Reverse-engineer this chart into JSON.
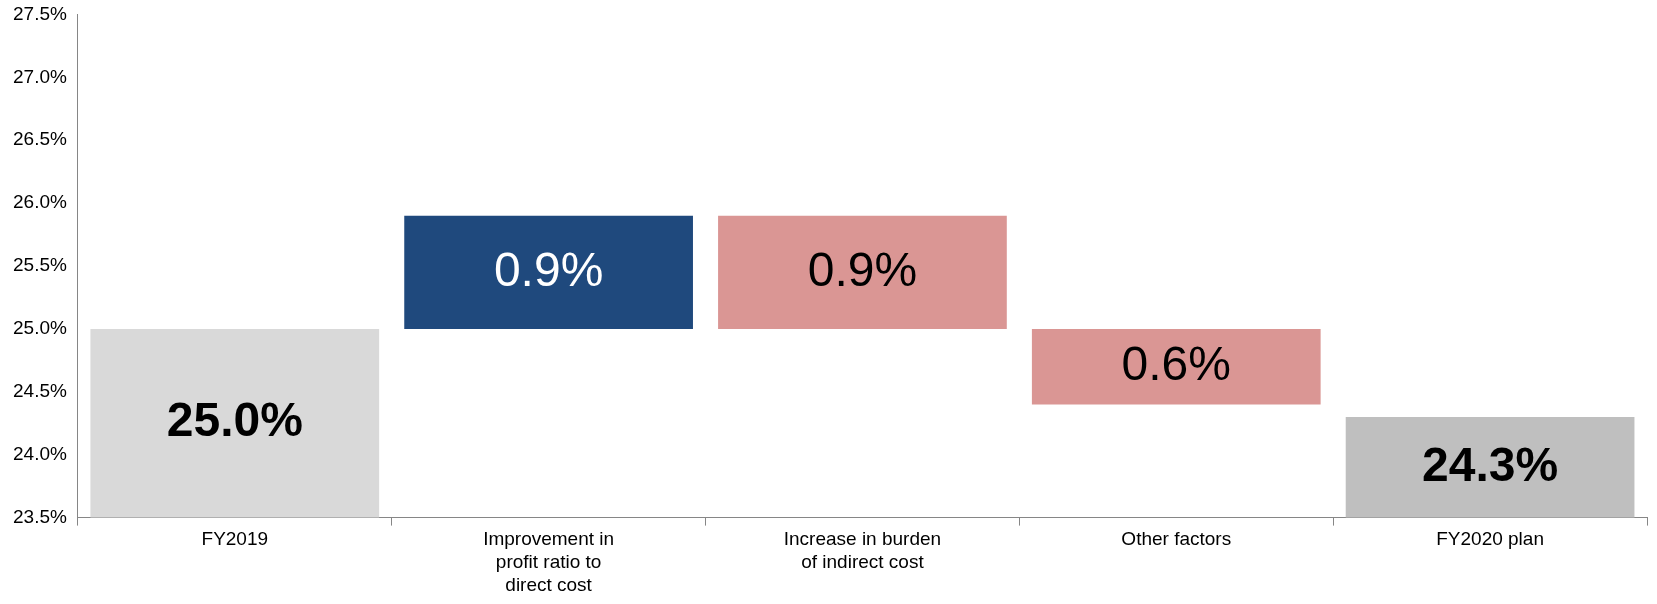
{
  "chart_data": {
    "type": "bar",
    "categories": [
      "FY2019",
      "Improvement in profit ratio to direct cost",
      "Increase in burden of indirect cost",
      "Other factors",
      "FY2020 plan"
    ],
    "values": [
      25.0,
      0.9,
      -0.9,
      -0.6,
      24.3
    ],
    "base": [
      null,
      25.0,
      25.9,
      25.0,
      null
    ],
    "colors": [
      "#d9d9d9",
      "#1f497d",
      "#da9694",
      "#da9694",
      "#bfbfbf"
    ],
    "value_labels": [
      "25.0%",
      "0.9%",
      "0.9%",
      "0.6%",
      "24.3%"
    ],
    "ylim": [
      23.5,
      27.5
    ],
    "yticks": [
      {
        "value": 23.5,
        "label": "23.5%"
      },
      {
        "value": 24.0,
        "label": "24.0%"
      },
      {
        "value": 24.5,
        "label": "24.5%"
      },
      {
        "value": 25.0,
        "label": "25.0%"
      },
      {
        "value": 25.5,
        "label": "25.5%"
      },
      {
        "value": 26.0,
        "label": "26.0%"
      },
      {
        "value": 26.5,
        "label": "26.5%"
      },
      {
        "value": 27.0,
        "label": "27.0%"
      },
      {
        "value": 27.5,
        "label": "27.5%"
      }
    ],
    "grid": false,
    "legend": false
  }
}
